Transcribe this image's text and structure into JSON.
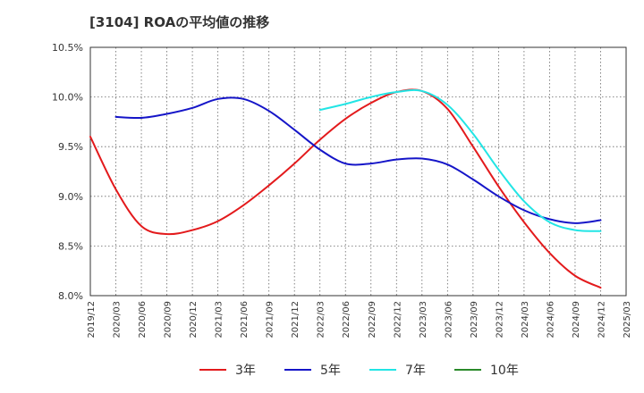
{
  "chart_data": {
    "type": "line",
    "title": "[3104]  ROAの平均値の推移",
    "xlabel": "",
    "ylabel": "",
    "ylim": [
      8.0,
      10.5
    ],
    "yticks": [
      "8.0%",
      "8.5%",
      "9.0%",
      "9.5%",
      "10.0%",
      "10.5%"
    ],
    "x_categories": [
      "2019/12",
      "2020/03",
      "2020/06",
      "2020/09",
      "2020/12",
      "2021/03",
      "2021/06",
      "2021/09",
      "2021/12",
      "2022/03",
      "2022/06",
      "2022/09",
      "2022/12",
      "2023/03",
      "2023/06",
      "2023/09",
      "2023/12",
      "2024/03",
      "2024/06",
      "2024/09",
      "2024/12",
      "2025/03"
    ],
    "grid": true,
    "legend_position": "bottom",
    "series": [
      {
        "name": "3年",
        "color": "#e31a1c",
        "x": [
          "2019/12",
          "2020/03",
          "2020/06",
          "2020/09",
          "2020/12",
          "2021/03",
          "2021/06",
          "2021/09",
          "2021/12",
          "2022/03",
          "2022/06",
          "2022/09",
          "2022/12",
          "2023/03",
          "2023/06",
          "2023/09",
          "2023/12",
          "2024/03",
          "2024/06",
          "2024/09",
          "2024/12"
        ],
        "values": [
          9.6,
          9.07,
          8.7,
          8.62,
          8.66,
          8.75,
          8.91,
          9.11,
          9.33,
          9.57,
          9.78,
          9.94,
          10.05,
          10.06,
          9.88,
          9.5,
          9.1,
          8.74,
          8.43,
          8.2,
          8.08
        ]
      },
      {
        "name": "5年",
        "color": "#1515c8",
        "x": [
          "2020/03",
          "2020/06",
          "2020/09",
          "2020/12",
          "2021/03",
          "2021/06",
          "2021/09",
          "2021/12",
          "2022/03",
          "2022/06",
          "2022/09",
          "2022/12",
          "2023/03",
          "2023/06",
          "2023/09",
          "2023/12",
          "2024/03",
          "2024/06",
          "2024/09",
          "2024/12"
        ],
        "values": [
          9.8,
          9.79,
          9.83,
          9.89,
          9.98,
          9.98,
          9.86,
          9.67,
          9.47,
          9.33,
          9.33,
          9.37,
          9.38,
          9.32,
          9.17,
          9.0,
          8.86,
          8.77,
          8.73,
          8.76
        ]
      },
      {
        "name": "7年",
        "color": "#22e5e5",
        "x": [
          "2022/03",
          "2022/06",
          "2022/09",
          "2022/12",
          "2023/03",
          "2023/06",
          "2023/09",
          "2023/12",
          "2024/03",
          "2024/06",
          "2024/09",
          "2024/12"
        ],
        "values": [
          9.87,
          9.93,
          10.0,
          10.05,
          10.06,
          9.92,
          9.63,
          9.27,
          8.95,
          8.74,
          8.66,
          8.65
        ]
      },
      {
        "name": "10年",
        "color": "#2a8a2a",
        "x": [],
        "values": []
      }
    ]
  }
}
